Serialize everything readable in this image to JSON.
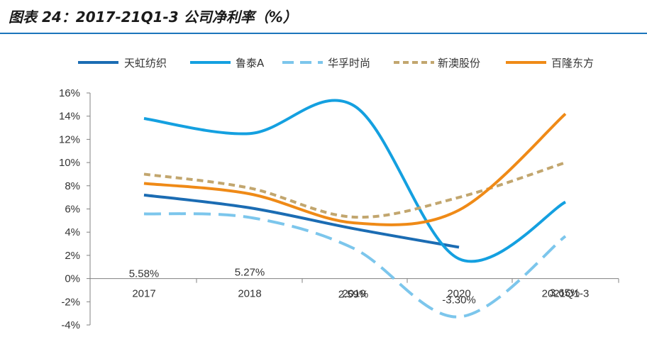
{
  "title": "图表 24：2017-21Q1-3 公司净利率（%）",
  "chart_data": {
    "type": "line",
    "title": "图表 24：2017-21Q1-3 公司净利率（%）",
    "categories": [
      "2017",
      "2018",
      "2019",
      "2020",
      "2021Q1-3"
    ],
    "ylim": [
      -4,
      16
    ],
    "ytick_labels": [
      "-4%",
      "-2%",
      "0%",
      "2%",
      "4%",
      "6%",
      "8%",
      "10%",
      "12%",
      "14%",
      "16%"
    ],
    "grid": false,
    "legend_position": "top",
    "series": [
      {
        "name": "天虹纺织",
        "values": [
          7.2,
          6.1,
          4.3,
          2.7,
          null
        ],
        "color": "#1b6cb3",
        "style": "solid"
      },
      {
        "name": "鲁泰A",
        "values": [
          13.8,
          12.5,
          14.9,
          1.7,
          6.6
        ],
        "color": "#14a0e0",
        "style": "solid"
      },
      {
        "name": "华孚时尚",
        "values": [
          5.58,
          5.27,
          2.59,
          -3.3,
          3.65
        ],
        "color": "#7cc6ec",
        "style": "dashed"
      },
      {
        "name": "新澳股份",
        "values": [
          9.0,
          7.8,
          5.3,
          7.0,
          10.0
        ],
        "color": "#c2a66e",
        "style": "dotted"
      },
      {
        "name": "百隆东方",
        "values": [
          8.2,
          7.3,
          4.8,
          5.9,
          14.2
        ],
        "color": "#ef8a17",
        "style": "solid"
      }
    ],
    "data_labels": [
      {
        "series": "华孚时尚",
        "category": "2017",
        "text": "5.58%"
      },
      {
        "series": "华孚时尚",
        "category": "2018",
        "text": "5.27%"
      },
      {
        "series": "华孚时尚",
        "category": "2019",
        "text": "2.59%"
      },
      {
        "series": "华孚时尚",
        "category": "2020",
        "text": "-3.30%"
      },
      {
        "series": "华孚时尚",
        "category": "2021Q1-3",
        "text": "3.65%"
      }
    ]
  }
}
